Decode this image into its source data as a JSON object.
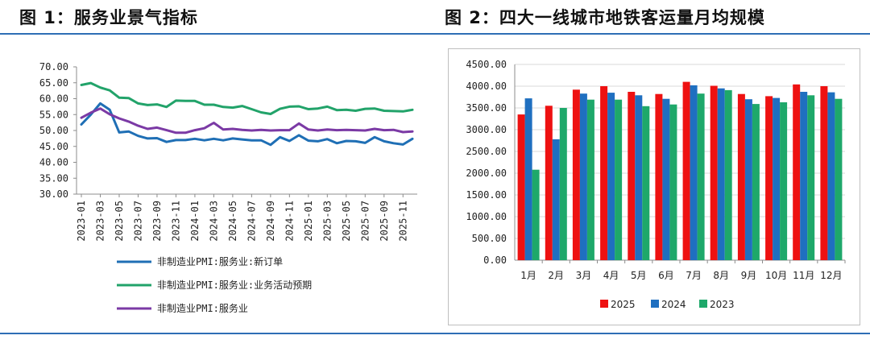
{
  "header": {
    "left_title": "图 1：服务业景气指标",
    "right_title": "图 2：四大一线城市地铁客运量月均规模"
  },
  "colors": {
    "rule": "#2e6eb5",
    "new_orders": "#1f6fb5",
    "expectation": "#22a36a",
    "services": "#7b3aa5",
    "y2025": "#ee1111",
    "y2024": "#1f6fc0",
    "y2023": "#1ea86a"
  },
  "chart_data": [
    {
      "type": "line",
      "title": "图 1：服务业景气指标",
      "ylim": [
        30,
        70
      ],
      "yticks": [
        "30.00",
        "35.00",
        "40.00",
        "45.00",
        "50.00",
        "55.00",
        "60.00",
        "65.00",
        "70.00"
      ],
      "x_tick_labels": [
        "2023-01",
        "2023-03",
        "2023-05",
        "2023-07",
        "2023-09",
        "2023-11",
        "2024-01",
        "2024-03",
        "2024-05",
        "2024-07",
        "2024-09",
        "2024-11",
        "2025-01",
        "2025-03",
        "2025-05",
        "2025-07",
        "2025-09",
        "2025-11"
      ],
      "x": [
        "2023-01",
        "2023-02",
        "2023-03",
        "2023-04",
        "2023-05",
        "2023-06",
        "2023-07",
        "2023-08",
        "2023-09",
        "2023-10",
        "2023-11",
        "2023-12",
        "2024-01",
        "2024-02",
        "2024-03",
        "2024-04",
        "2024-05",
        "2024-06",
        "2024-07",
        "2024-08",
        "2024-09",
        "2024-10",
        "2024-11",
        "2024-12",
        "2025-01",
        "2025-02",
        "2025-03",
        "2025-04",
        "2025-05",
        "2025-06",
        "2025-07",
        "2025-08",
        "2025-09",
        "2025-10",
        "2025-11",
        "2025-12"
      ],
      "series": [
        {
          "name": "非制造业PMI:服务业:新订单",
          "color_key": "new_orders",
          "values": [
            51.9,
            55.0,
            58.5,
            56.5,
            49.4,
            49.7,
            48.3,
            47.5,
            47.6,
            46.4,
            47.0,
            47.0,
            47.4,
            46.9,
            47.4,
            46.9,
            47.5,
            47.2,
            46.9,
            46.9,
            45.5,
            47.9,
            46.7,
            48.5,
            46.8,
            46.6,
            47.3,
            46.0,
            46.7,
            46.6,
            46.1,
            47.9,
            46.6,
            46.0,
            45.6,
            47.4
          ]
        },
        {
          "name": "非制造业PMI:服务业:业务活动预期",
          "color_key": "expectation",
          "values": [
            64.3,
            64.9,
            63.5,
            62.6,
            60.3,
            60.2,
            58.5,
            58.0,
            58.2,
            57.4,
            59.4,
            59.3,
            59.3,
            58.1,
            58.1,
            57.4,
            57.2,
            57.7,
            56.7,
            55.7,
            55.2,
            56.8,
            57.5,
            57.6,
            56.7,
            56.9,
            57.5,
            56.4,
            56.5,
            56.2,
            56.8,
            56.9,
            56.2,
            56.1,
            56.0,
            56.5
          ]
        },
        {
          "name": "非制造业PMI:服务业",
          "color_key": "services",
          "values": [
            54.0,
            55.6,
            56.9,
            55.1,
            53.8,
            52.8,
            51.5,
            50.5,
            50.9,
            50.1,
            49.3,
            49.3,
            50.1,
            50.7,
            52.4,
            50.3,
            50.5,
            50.2,
            50.0,
            50.2,
            50.0,
            50.1,
            50.1,
            52.2,
            50.3,
            50.0,
            50.3,
            50.1,
            50.2,
            50.1,
            50.0,
            50.5,
            50.1,
            50.2,
            49.5,
            49.7
          ]
        }
      ]
    },
    {
      "type": "bar",
      "title": "图 2：四大一线城市地铁客运量月均规模",
      "ylim": [
        0,
        4500
      ],
      "yticks": [
        "0.00",
        "500.00",
        "1000.00",
        "1500.00",
        "2000.00",
        "2500.00",
        "3000.00",
        "3500.00",
        "4000.00",
        "4500.00"
      ],
      "categories": [
        "1月",
        "2月",
        "3月",
        "4月",
        "5月",
        "6月",
        "7月",
        "8月",
        "9月",
        "10月",
        "11月",
        "12月"
      ],
      "series": [
        {
          "name": "2025",
          "color_key": "y2025",
          "values": [
            3350,
            3550,
            3920,
            4000,
            3870,
            3820,
            4100,
            4010,
            3820,
            3770,
            4040,
            4000
          ]
        },
        {
          "name": "2024",
          "color_key": "y2024",
          "values": [
            3720,
            2780,
            3830,
            3850,
            3790,
            3710,
            4020,
            3950,
            3700,
            3730,
            3870,
            3860
          ]
        },
        {
          "name": "2023",
          "color_key": "y2023",
          "values": [
            2080,
            3500,
            3690,
            3690,
            3540,
            3580,
            3830,
            3910,
            3590,
            3630,
            3790,
            3710
          ]
        }
      ]
    }
  ]
}
